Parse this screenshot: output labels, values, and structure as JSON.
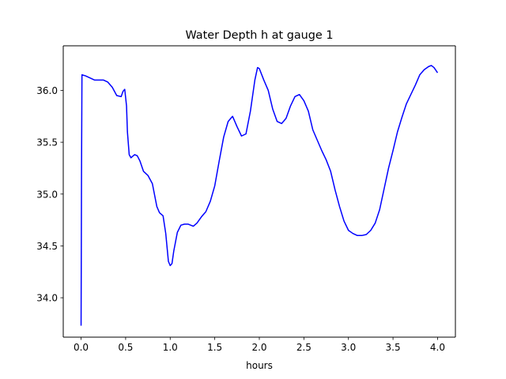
{
  "chart_data": {
    "type": "line",
    "title": "Water Depth h at gauge 1",
    "xlabel": "hours",
    "ylabel": "",
    "xlim": [
      -0.2,
      4.2
    ],
    "ylim": [
      33.62,
      36.43
    ],
    "grid": false,
    "x_ticks": [
      0.0,
      0.5,
      1.0,
      1.5,
      2.0,
      2.5,
      3.0,
      3.5,
      4.0
    ],
    "x_tick_labels": [
      "0.0",
      "0.5",
      "1.0",
      "1.5",
      "2.0",
      "2.5",
      "3.0",
      "3.5",
      "4.0"
    ],
    "y_ticks": [
      34.0,
      34.5,
      35.0,
      35.5,
      36.0
    ],
    "y_tick_labels": [
      "34.0",
      "34.5",
      "35.0",
      "35.5",
      "36.0"
    ],
    "series": [
      {
        "color": "#0000ff",
        "x": [
          0.0,
          0.005,
          0.01,
          0.05,
          0.1,
          0.15,
          0.2,
          0.25,
          0.3,
          0.35,
          0.4,
          0.45,
          0.47,
          0.49,
          0.51,
          0.52,
          0.54,
          0.56,
          0.6,
          0.63,
          0.66,
          0.7,
          0.75,
          0.8,
          0.85,
          0.88,
          0.92,
          0.95,
          0.98,
          1.0,
          1.02,
          1.04,
          1.08,
          1.12,
          1.16,
          1.2,
          1.23,
          1.26,
          1.3,
          1.35,
          1.4,
          1.45,
          1.5,
          1.55,
          1.6,
          1.65,
          1.7,
          1.75,
          1.8,
          1.85,
          1.9,
          1.95,
          1.98,
          2.0,
          2.05,
          2.1,
          2.15,
          2.2,
          2.25,
          2.3,
          2.35,
          2.4,
          2.45,
          2.5,
          2.55,
          2.6,
          2.65,
          2.7,
          2.75,
          2.8,
          2.85,
          2.9,
          2.95,
          3.0,
          3.05,
          3.1,
          3.15,
          3.2,
          3.25,
          3.3,
          3.35,
          3.4,
          3.45,
          3.5,
          3.55,
          3.6,
          3.65,
          3.7,
          3.75,
          3.8,
          3.85,
          3.9,
          3.93,
          3.96,
          4.0
        ],
        "y": [
          33.73,
          35.2,
          36.15,
          36.14,
          36.12,
          36.1,
          36.1,
          36.1,
          36.08,
          36.03,
          35.95,
          35.94,
          35.99,
          36.01,
          35.85,
          35.6,
          35.38,
          35.35,
          35.38,
          35.37,
          35.32,
          35.22,
          35.18,
          35.1,
          34.88,
          34.82,
          34.79,
          34.62,
          34.35,
          34.31,
          34.33,
          34.45,
          34.63,
          34.7,
          34.71,
          34.71,
          34.7,
          34.69,
          34.72,
          34.78,
          34.83,
          34.93,
          35.08,
          35.32,
          35.55,
          35.7,
          35.75,
          35.65,
          35.56,
          35.58,
          35.8,
          36.1,
          36.22,
          36.21,
          36.1,
          36.0,
          35.82,
          35.7,
          35.68,
          35.73,
          35.85,
          35.94,
          35.96,
          35.9,
          35.8,
          35.62,
          35.52,
          35.42,
          35.33,
          35.22,
          35.04,
          34.88,
          34.74,
          34.65,
          34.62,
          34.6,
          34.6,
          34.61,
          34.65,
          34.72,
          34.85,
          35.05,
          35.25,
          35.42,
          35.6,
          35.74,
          35.87,
          35.96,
          36.05,
          36.15,
          36.2,
          36.23,
          36.24,
          36.22,
          36.17
        ]
      }
    ]
  }
}
